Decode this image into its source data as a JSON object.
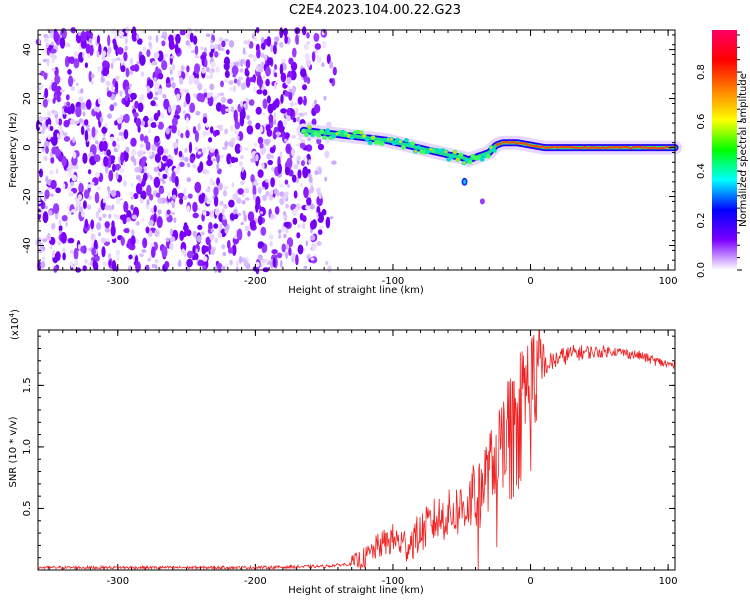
{
  "figure": {
    "title": "C2E4.2023.104.00.22.G23"
  },
  "chart_data": [
    {
      "type": "heatmap",
      "xlabel": "Height of straight line (km)",
      "ylabel": "Frequency (Hz)",
      "xlim": [
        -358,
        105
      ],
      "ylim": [
        -50,
        48
      ],
      "xticks": [
        {
          "value": -300,
          "label": "-300"
        },
        {
          "value": -200,
          "label": "-200"
        },
        {
          "value": -100,
          "label": "-100"
        },
        {
          "value": 0,
          "label": "0"
        },
        {
          "value": 100,
          "label": "100"
        }
      ],
      "yticks": [
        {
          "value": 40,
          "label": "40"
        },
        {
          "value": 20,
          "label": "20"
        },
        {
          "value": 0,
          "label": "0"
        },
        {
          "value": -20,
          "label": "-20"
        },
        {
          "value": -40,
          "label": "-40"
        }
      ],
      "noise_region_x": [
        -358,
        -140
      ],
      "signal_track": {
        "x": [
          -165,
          -150,
          -135,
          -120,
          -105,
          -90,
          -75,
          -60,
          -50,
          -45,
          -40,
          -35,
          -30,
          -25,
          -20,
          -10,
          0,
          10,
          30,
          60,
          90,
          105
        ],
        "frequency": [
          7,
          6,
          5,
          4,
          3,
          1,
          -1,
          -3,
          -4,
          -5,
          -4,
          -3,
          -2,
          1,
          2,
          2,
          1,
          0,
          0,
          0,
          0,
          0
        ]
      },
      "colorbar": {
        "label": "Normalized spectral amplitude",
        "range": [
          0.0,
          0.97
        ],
        "ticks": [
          {
            "value": 0.0,
            "label": "0.0"
          },
          {
            "value": 0.2,
            "label": "0.2"
          },
          {
            "value": 0.4,
            "label": "0.4"
          },
          {
            "value": 0.6,
            "label": "0.6"
          },
          {
            "value": 0.8,
            "label": "0.8"
          }
        ],
        "colors": [
          "#ffffff",
          "#7b00ff",
          "#0000ff",
          "#00ffff",
          "#00ff00",
          "#ffff00",
          "#ff8000",
          "#ff0000",
          "#ff0066"
        ]
      }
    },
    {
      "type": "line",
      "xlabel": "Height of straight line (km)",
      "ylabel": "SNR (10 * v/v)",
      "y_multiplier": "(x10",
      "y_multiplier_exp": "4",
      "y_multiplier_close": ")",
      "xlim": [
        -358,
        105
      ],
      "ylim": [
        0,
        1.95
      ],
      "color": "#ee2222",
      "xticks": [
        {
          "value": -300,
          "label": "-300"
        },
        {
          "value": -200,
          "label": "-200"
        },
        {
          "value": -100,
          "label": "-100"
        },
        {
          "value": 0,
          "label": "0"
        },
        {
          "value": 100,
          "label": "100"
        }
      ],
      "yticks": [
        {
          "value": 0.5,
          "label": "0.5"
        },
        {
          "value": 1.0,
          "label": "1.0"
        },
        {
          "value": 1.5,
          "label": "1.5"
        }
      ],
      "series": [
        {
          "x": [
            -358,
            -300,
            -250,
            -200,
            -150,
            -130,
            -120,
            -110,
            -100,
            -90,
            -80,
            -70,
            -60,
            -50,
            -40,
            -30,
            -20,
            -10,
            0,
            10,
            20,
            30,
            40,
            50,
            60,
            70,
            80,
            90,
            100,
            105
          ],
          "y": [
            0.02,
            0.02,
            0.02,
            0.02,
            0.03,
            0.05,
            0.1,
            0.2,
            0.25,
            0.2,
            0.3,
            0.4,
            0.45,
            0.5,
            0.6,
            0.8,
            1.1,
            1.35,
            1.55,
            1.65,
            1.72,
            1.76,
            1.77,
            1.77,
            1.78,
            1.76,
            1.74,
            1.7,
            1.67,
            1.66
          ]
        }
      ]
    }
  ]
}
